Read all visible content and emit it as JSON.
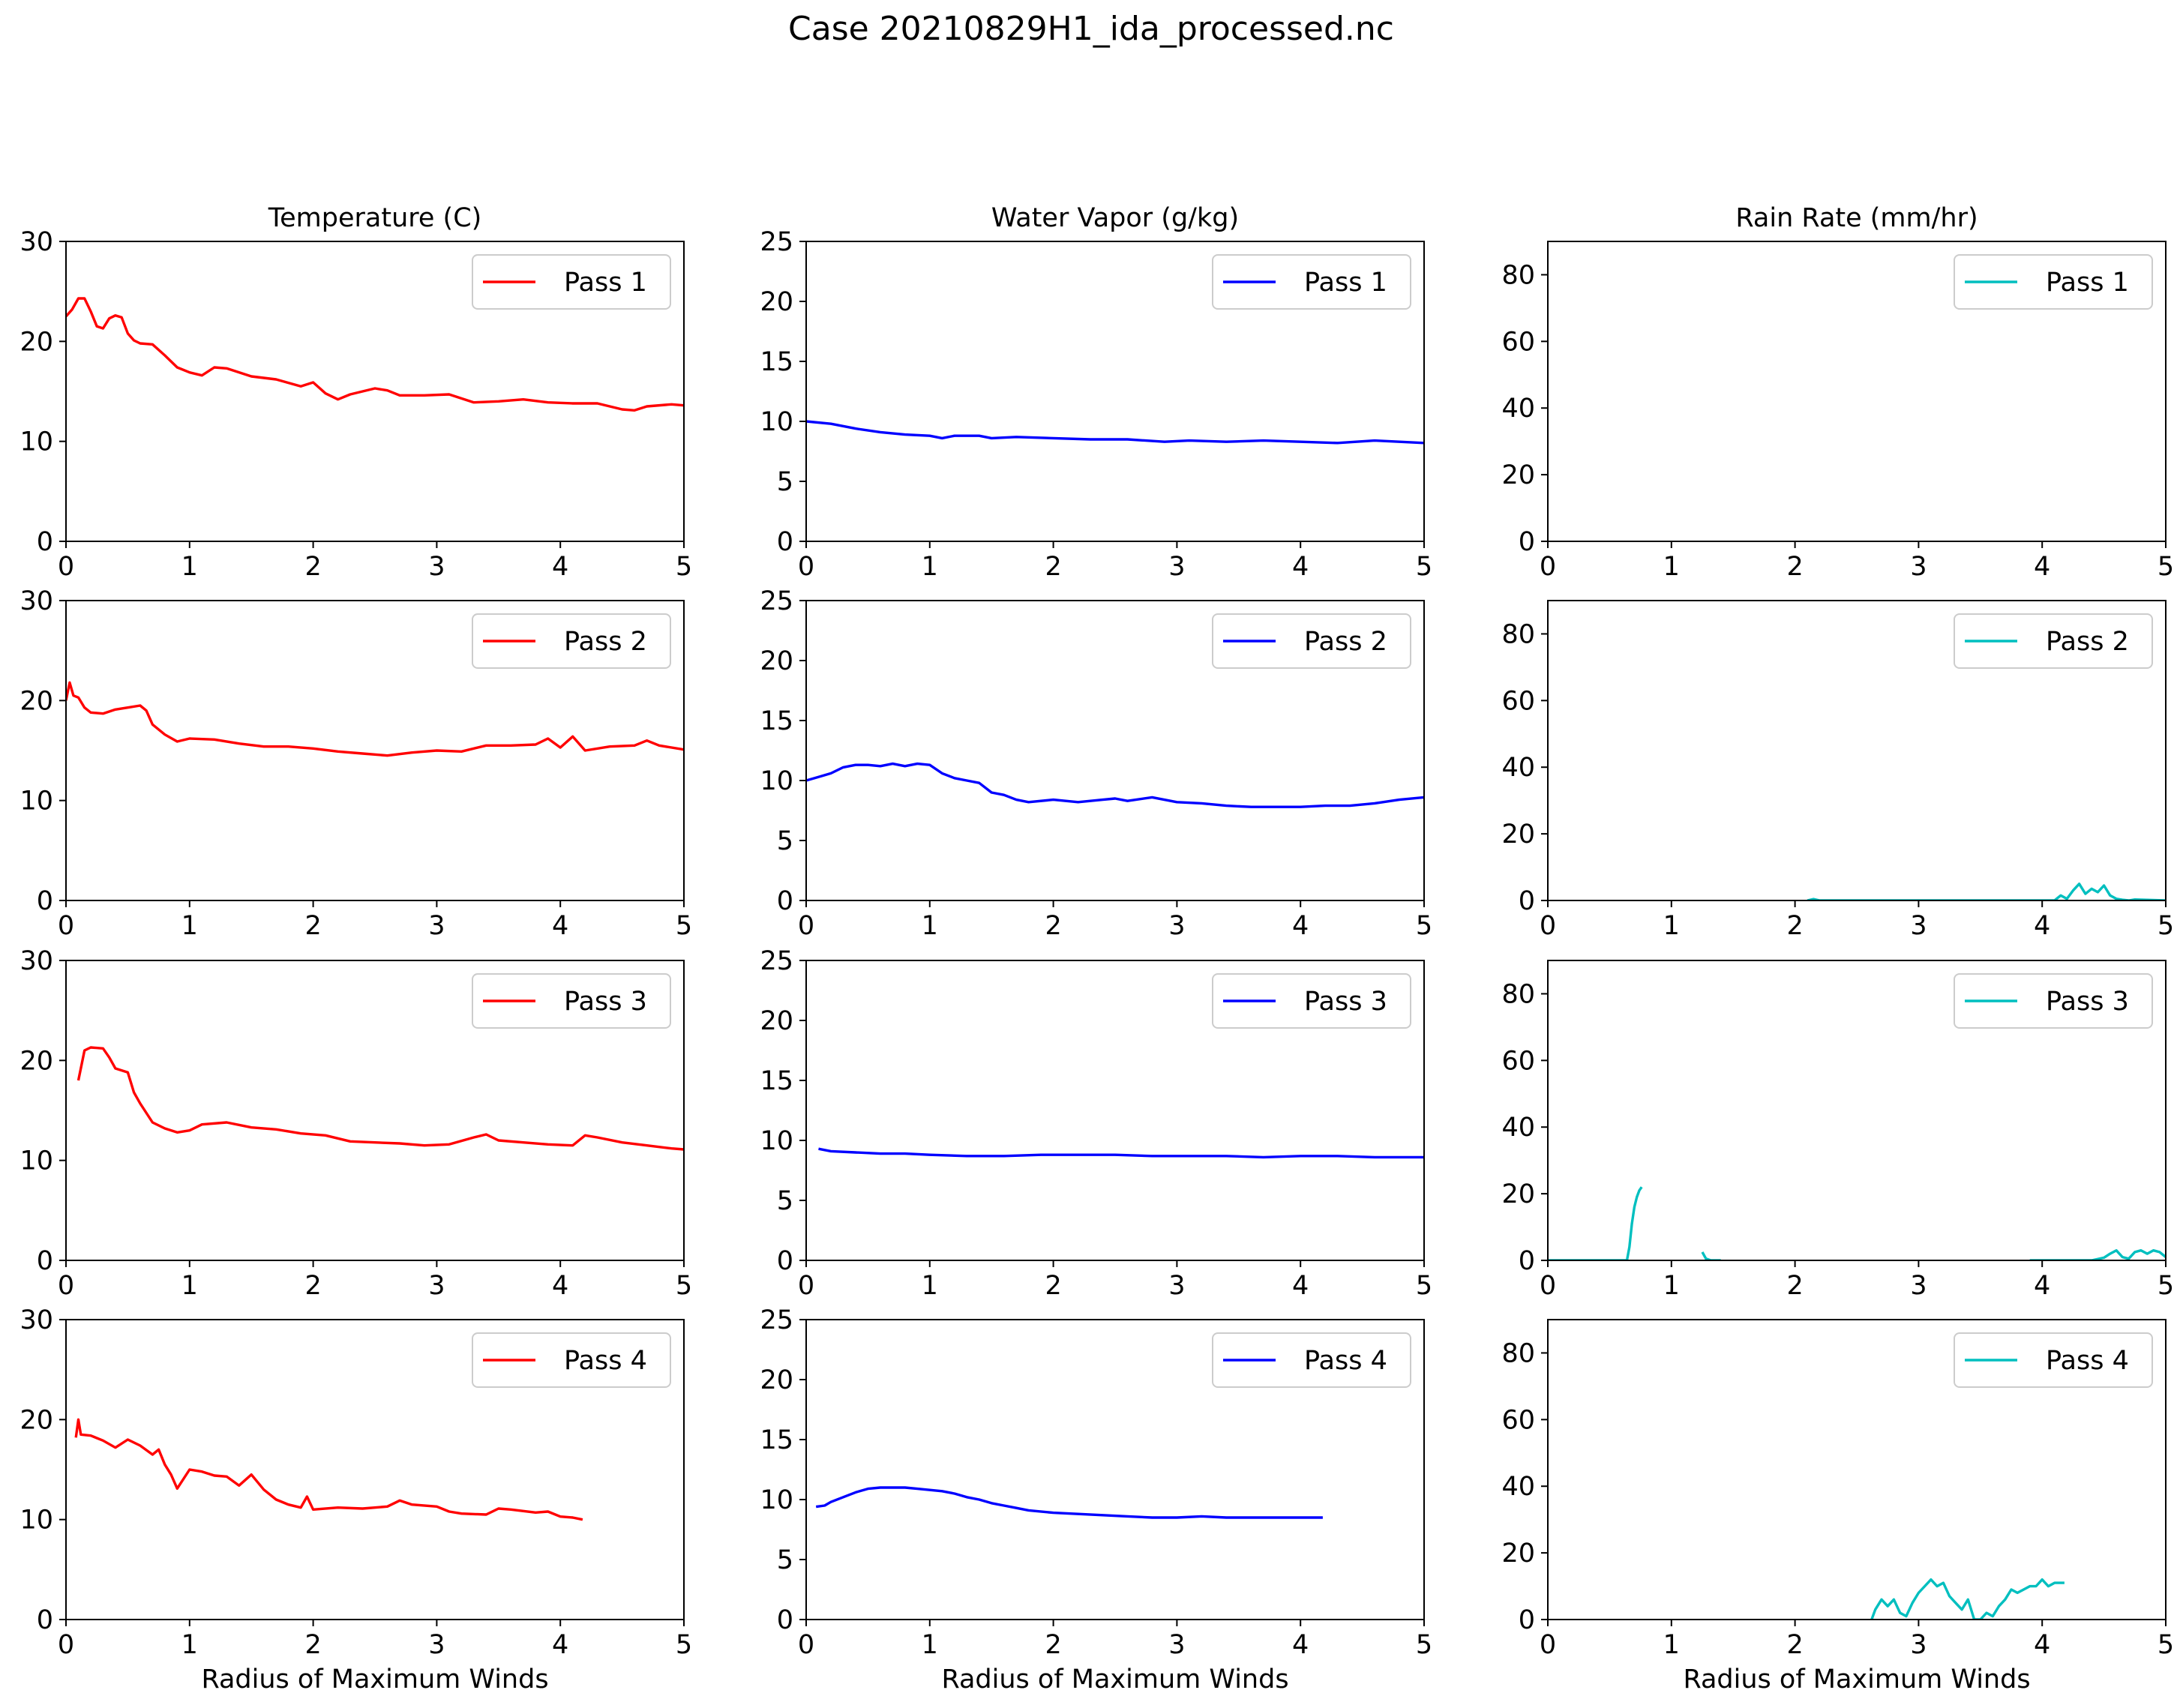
{
  "suptitle": "Case 20210829H1_ida_processed.nc",
  "xlabel": "Radius of Maximum Winds",
  "colors": {
    "temperature": "#ff0000",
    "vapor": "#0000ff",
    "rain": "#00bfbf"
  },
  "chart_data": [
    {
      "type": "line",
      "row": 1,
      "col": 1,
      "title": "Temperature (C)",
      "xlabel": "",
      "xlim": [
        0,
        5
      ],
      "ylim": [
        0,
        30
      ],
      "yticks": [
        0,
        10,
        20,
        30
      ],
      "xticks": [
        0,
        1,
        2,
        3,
        4,
        5
      ],
      "legend": "upper right",
      "color": "#ff0000",
      "series": [
        {
          "name": "Pass 1",
          "x": [
            0,
            0.05,
            0.1,
            0.15,
            0.2,
            0.25,
            0.3,
            0.35,
            0.4,
            0.45,
            0.5,
            0.55,
            0.6,
            0.7,
            0.8,
            0.9,
            1.0,
            1.1,
            1.2,
            1.3,
            1.5,
            1.7,
            1.9,
            2.0,
            2.1,
            2.2,
            2.3,
            2.5,
            2.6,
            2.7,
            2.9,
            3.1,
            3.3,
            3.5,
            3.7,
            3.9,
            4.1,
            4.3,
            4.5,
            4.6,
            4.7,
            4.9,
            5.0
          ],
          "y": [
            22.5,
            23.2,
            24.3,
            24.3,
            23.0,
            21.5,
            21.3,
            22.3,
            22.6,
            22.4,
            20.8,
            20.1,
            19.8,
            19.7,
            18.6,
            17.4,
            16.9,
            16.6,
            17.4,
            17.3,
            16.5,
            16.2,
            15.5,
            15.9,
            14.8,
            14.2,
            14.7,
            15.3,
            15.1,
            14.6,
            14.6,
            14.7,
            13.9,
            14.0,
            14.2,
            13.9,
            13.8,
            13.8,
            13.2,
            13.1,
            13.5,
            13.7,
            13.6
          ]
        }
      ]
    },
    {
      "type": "line",
      "row": 1,
      "col": 2,
      "title": "Water Vapor (g/kg)",
      "xlabel": "",
      "xlim": [
        0,
        5
      ],
      "ylim": [
        0,
        25
      ],
      "yticks": [
        0,
        5,
        10,
        15,
        20,
        25
      ],
      "xticks": [
        0,
        1,
        2,
        3,
        4,
        5
      ],
      "legend": "upper right",
      "color": "#0000ff",
      "series": [
        {
          "name": "Pass 1",
          "x": [
            0,
            0.2,
            0.4,
            0.6,
            0.8,
            1.0,
            1.1,
            1.2,
            1.4,
            1.5,
            1.7,
            2.0,
            2.3,
            2.6,
            2.9,
            3.1,
            3.4,
            3.7,
            4.0,
            4.3,
            4.6,
            5.0
          ],
          "y": [
            10.0,
            9.8,
            9.4,
            9.1,
            8.9,
            8.8,
            8.6,
            8.8,
            8.8,
            8.6,
            8.7,
            8.6,
            8.5,
            8.5,
            8.3,
            8.4,
            8.3,
            8.4,
            8.3,
            8.2,
            8.4,
            8.2
          ]
        }
      ]
    },
    {
      "type": "line",
      "row": 1,
      "col": 3,
      "title": "Rain Rate (mm/hr)",
      "xlabel": "",
      "xlim": [
        0,
        5
      ],
      "ylim": [
        0,
        90
      ],
      "yticks": [
        0,
        20,
        40,
        60,
        80
      ],
      "xticks": [
        0,
        1,
        2,
        3,
        4,
        5
      ],
      "legend": "upper right",
      "color": "#00bfbf",
      "series": [
        {
          "name": "Pass 1",
          "x": [],
          "y": []
        }
      ]
    },
    {
      "type": "line",
      "row": 2,
      "col": 1,
      "title": "",
      "xlabel": "",
      "xlim": [
        0,
        5
      ],
      "ylim": [
        0,
        30
      ],
      "yticks": [
        0,
        10,
        20,
        30
      ],
      "xticks": [
        0,
        1,
        2,
        3,
        4,
        5
      ],
      "legend": "upper right",
      "color": "#ff0000",
      "series": [
        {
          "name": "Pass 2",
          "x": [
            0,
            0.03,
            0.06,
            0.1,
            0.15,
            0.2,
            0.3,
            0.4,
            0.5,
            0.6,
            0.65,
            0.7,
            0.8,
            0.9,
            1.0,
            1.2,
            1.4,
            1.6,
            1.8,
            2.0,
            2.2,
            2.4,
            2.6,
            2.8,
            3.0,
            3.2,
            3.4,
            3.6,
            3.8,
            3.9,
            4.0,
            4.1,
            4.2,
            4.4,
            4.6,
            4.7,
            4.8,
            5.0
          ],
          "y": [
            20.0,
            21.8,
            20.5,
            20.3,
            19.3,
            18.8,
            18.7,
            19.1,
            19.3,
            19.5,
            19.0,
            17.6,
            16.6,
            15.9,
            16.2,
            16.1,
            15.7,
            15.4,
            15.4,
            15.2,
            14.9,
            14.7,
            14.5,
            14.8,
            15.0,
            14.9,
            15.5,
            15.5,
            15.6,
            16.2,
            15.3,
            16.4,
            15.0,
            15.4,
            15.5,
            16.0,
            15.5,
            15.1
          ]
        }
      ]
    },
    {
      "type": "line",
      "row": 2,
      "col": 2,
      "title": "",
      "xlabel": "",
      "xlim": [
        0,
        5
      ],
      "ylim": [
        0,
        25
      ],
      "yticks": [
        0,
        5,
        10,
        15,
        20,
        25
      ],
      "xticks": [
        0,
        1,
        2,
        3,
        4,
        5
      ],
      "legend": "upper right",
      "color": "#0000ff",
      "series": [
        {
          "name": "Pass 2",
          "x": [
            0,
            0.1,
            0.2,
            0.3,
            0.4,
            0.5,
            0.6,
            0.7,
            0.8,
            0.9,
            1.0,
            1.1,
            1.2,
            1.3,
            1.4,
            1.5,
            1.6,
            1.7,
            1.8,
            2.0,
            2.2,
            2.4,
            2.5,
            2.6,
            2.8,
            3.0,
            3.2,
            3.4,
            3.6,
            3.8,
            4.0,
            4.2,
            4.4,
            4.6,
            4.8,
            5.0
          ],
          "y": [
            10.0,
            10.3,
            10.6,
            11.1,
            11.3,
            11.3,
            11.2,
            11.4,
            11.2,
            11.4,
            11.3,
            10.6,
            10.2,
            10.0,
            9.8,
            9.0,
            8.8,
            8.4,
            8.2,
            8.4,
            8.2,
            8.4,
            8.5,
            8.3,
            8.6,
            8.2,
            8.1,
            7.9,
            7.8,
            7.8,
            7.8,
            7.9,
            7.9,
            8.1,
            8.4,
            8.6
          ]
        }
      ]
    },
    {
      "type": "line",
      "row": 2,
      "col": 3,
      "title": "",
      "xlabel": "",
      "xlim": [
        0,
        5
      ],
      "ylim": [
        0,
        90
      ],
      "yticks": [
        0,
        20,
        40,
        60,
        80
      ],
      "xticks": [
        0,
        1,
        2,
        3,
        4,
        5
      ],
      "legend": "upper right",
      "color": "#00bfbf",
      "series": [
        {
          "name": "Pass 2",
          "x": [
            2.1,
            2.15,
            2.2,
            4.1,
            4.15,
            4.2,
            4.25,
            4.3,
            4.35,
            4.4,
            4.45,
            4.5,
            4.55,
            4.6,
            4.65,
            4.7,
            4.75,
            5.0
          ],
          "y": [
            0,
            0.4,
            0,
            0,
            1.5,
            0.5,
            3.0,
            5.0,
            2.0,
            3.5,
            2.5,
            4.5,
            1.5,
            0.5,
            0.2,
            0,
            0.3,
            0
          ]
        }
      ]
    },
    {
      "type": "line",
      "row": 3,
      "col": 1,
      "title": "",
      "xlabel": "",
      "xlim": [
        0,
        5
      ],
      "ylim": [
        0,
        30
      ],
      "yticks": [
        0,
        10,
        20,
        30
      ],
      "xticks": [
        0,
        1,
        2,
        3,
        4,
        5
      ],
      "legend": "upper right",
      "color": "#ff0000",
      "series": [
        {
          "name": "Pass 3",
          "x": [
            0.1,
            0.15,
            0.2,
            0.3,
            0.35,
            0.4,
            0.5,
            0.55,
            0.6,
            0.7,
            0.8,
            0.9,
            1.0,
            1.1,
            1.3,
            1.5,
            1.7,
            1.9,
            2.1,
            2.3,
            2.5,
            2.7,
            2.9,
            3.1,
            3.3,
            3.4,
            3.5,
            3.7,
            3.9,
            4.1,
            4.2,
            4.3,
            4.5,
            4.7,
            4.9,
            5.0
          ],
          "y": [
            18.0,
            21.0,
            21.3,
            21.2,
            20.3,
            19.2,
            18.8,
            16.8,
            15.7,
            13.8,
            13.2,
            12.8,
            13.0,
            13.6,
            13.8,
            13.3,
            13.1,
            12.7,
            12.5,
            11.9,
            11.8,
            11.7,
            11.5,
            11.6,
            12.3,
            12.6,
            12.0,
            11.8,
            11.6,
            11.5,
            12.5,
            12.3,
            11.8,
            11.5,
            11.2,
            11.1
          ]
        }
      ]
    },
    {
      "type": "line",
      "row": 3,
      "col": 2,
      "title": "",
      "xlabel": "",
      "xlim": [
        0,
        5
      ],
      "ylim": [
        0,
        25
      ],
      "yticks": [
        0,
        5,
        10,
        15,
        20,
        25
      ],
      "xticks": [
        0,
        1,
        2,
        3,
        4,
        5
      ],
      "legend": "upper right",
      "color": "#0000ff",
      "series": [
        {
          "name": "Pass 3",
          "x": [
            0.1,
            0.15,
            0.2,
            0.4,
            0.6,
            0.8,
            1.0,
            1.3,
            1.6,
            1.9,
            2.2,
            2.5,
            2.8,
            3.1,
            3.4,
            3.7,
            4.0,
            4.3,
            4.6,
            5.0
          ],
          "y": [
            9.3,
            9.2,
            9.1,
            9.0,
            8.9,
            8.9,
            8.8,
            8.7,
            8.7,
            8.8,
            8.8,
            8.8,
            8.7,
            8.7,
            8.7,
            8.6,
            8.7,
            8.7,
            8.6,
            8.6
          ]
        }
      ]
    },
    {
      "type": "line",
      "row": 3,
      "col": 3,
      "title": "",
      "xlabel": "",
      "xlim": [
        0,
        5
      ],
      "ylim": [
        0,
        90
      ],
      "yticks": [
        0,
        20,
        40,
        60,
        80
      ],
      "xticks": [
        0,
        1,
        2,
        3,
        4,
        5
      ],
      "legend": "upper right",
      "color": "#00bfbf",
      "series": [
        {
          "name": "Pass 3",
          "x": [
            0,
            0.64,
            0.66,
            0.68,
            0.7,
            0.72,
            0.74,
            0.76
          ],
          "y": [
            0,
            0,
            4,
            11,
            16,
            19,
            21,
            22
          ]
        },
        {
          "name": "",
          "x": [
            1.25,
            1.28,
            1.32,
            1.4
          ],
          "y": [
            2.5,
            0.5,
            0,
            0
          ]
        },
        {
          "name": "",
          "x": [
            3.9,
            4.4,
            4.5,
            4.55,
            4.6,
            4.65,
            4.7,
            4.75,
            4.8,
            4.85,
            4.9,
            4.95,
            5.0
          ],
          "y": [
            0,
            0,
            0.8,
            2.0,
            3.0,
            1.0,
            0.5,
            2.5,
            3.0,
            2.0,
            3.0,
            2.5,
            1.0
          ]
        }
      ]
    },
    {
      "type": "line",
      "row": 4,
      "col": 1,
      "title": "",
      "xlabel": "Radius of Maximum Winds",
      "xlim": [
        0,
        5
      ],
      "ylim": [
        0,
        30
      ],
      "yticks": [
        0,
        10,
        20,
        30
      ],
      "xticks": [
        0,
        1,
        2,
        3,
        4,
        5
      ],
      "legend": "upper right",
      "color": "#ff0000",
      "series": [
        {
          "name": "Pass 4",
          "x": [
            0.08,
            0.1,
            0.12,
            0.2,
            0.3,
            0.4,
            0.5,
            0.6,
            0.7,
            0.75,
            0.8,
            0.85,
            0.9,
            1.0,
            1.1,
            1.2,
            1.3,
            1.4,
            1.5,
            1.6,
            1.7,
            1.8,
            1.9,
            1.95,
            2.0,
            2.2,
            2.4,
            2.6,
            2.7,
            2.8,
            3.0,
            3.1,
            3.2,
            3.4,
            3.5,
            3.6,
            3.8,
            3.9,
            4.0,
            4.1,
            4.18
          ],
          "y": [
            18.2,
            20.0,
            18.5,
            18.4,
            17.9,
            17.2,
            18.0,
            17.4,
            16.5,
            17.0,
            15.5,
            14.5,
            13.1,
            15.0,
            14.8,
            14.4,
            14.3,
            13.4,
            14.5,
            13.0,
            12.0,
            11.5,
            11.2,
            12.3,
            11.0,
            11.2,
            11.1,
            11.3,
            11.9,
            11.5,
            11.3,
            10.8,
            10.6,
            10.5,
            11.1,
            11.0,
            10.7,
            10.8,
            10.3,
            10.2,
            10.0
          ]
        }
      ]
    },
    {
      "type": "line",
      "row": 4,
      "col": 2,
      "title": "",
      "xlabel": "Radius of Maximum Winds",
      "xlim": [
        0,
        5
      ],
      "ylim": [
        0,
        25
      ],
      "yticks": [
        0,
        5,
        10,
        15,
        20,
        25
      ],
      "xticks": [
        0,
        1,
        2,
        3,
        4,
        5
      ],
      "legend": "upper right",
      "color": "#0000ff",
      "series": [
        {
          "name": "Pass 4",
          "x": [
            0.08,
            0.15,
            0.2,
            0.3,
            0.4,
            0.5,
            0.6,
            0.7,
            0.8,
            0.9,
            1.0,
            1.1,
            1.2,
            1.3,
            1.4,
            1.5,
            1.6,
            1.7,
            1.8,
            2.0,
            2.2,
            2.4,
            2.6,
            2.8,
            3.0,
            3.2,
            3.4,
            3.6,
            3.8,
            4.0,
            4.18
          ],
          "y": [
            9.4,
            9.5,
            9.8,
            10.2,
            10.6,
            10.9,
            11.0,
            11.0,
            11.0,
            10.9,
            10.8,
            10.7,
            10.5,
            10.2,
            10.0,
            9.7,
            9.5,
            9.3,
            9.1,
            8.9,
            8.8,
            8.7,
            8.6,
            8.5,
            8.5,
            8.6,
            8.5,
            8.5,
            8.5,
            8.5,
            8.5
          ]
        }
      ]
    },
    {
      "type": "line",
      "row": 4,
      "col": 3,
      "title": "",
      "xlabel": "Radius of Maximum Winds",
      "xlim": [
        0,
        5
      ],
      "ylim": [
        0,
        90
      ],
      "yticks": [
        0,
        20,
        40,
        60,
        80
      ],
      "xticks": [
        0,
        1,
        2,
        3,
        4,
        5
      ],
      "legend": "upper right",
      "color": "#00bfbf",
      "series": [
        {
          "name": "Pass 4",
          "x": [
            2.62,
            2.65,
            2.7,
            2.75,
            2.8,
            2.85,
            2.9,
            2.95,
            3.0,
            3.05,
            3.1,
            3.15,
            3.2,
            3.25,
            3.3,
            3.35,
            3.4,
            3.45,
            3.5,
            3.55,
            3.6,
            3.65,
            3.7,
            3.75,
            3.8,
            3.85,
            3.9,
            3.95,
            4.0,
            4.05,
            4.1,
            4.15,
            4.18
          ],
          "y": [
            0,
            3,
            6,
            4,
            6,
            2,
            1,
            5,
            8,
            10,
            12,
            10,
            11,
            7,
            5,
            3,
            6,
            0,
            0,
            2,
            1,
            4,
            6,
            9,
            8,
            9,
            10,
            10,
            12,
            10,
            11,
            11,
            11
          ]
        }
      ]
    }
  ]
}
